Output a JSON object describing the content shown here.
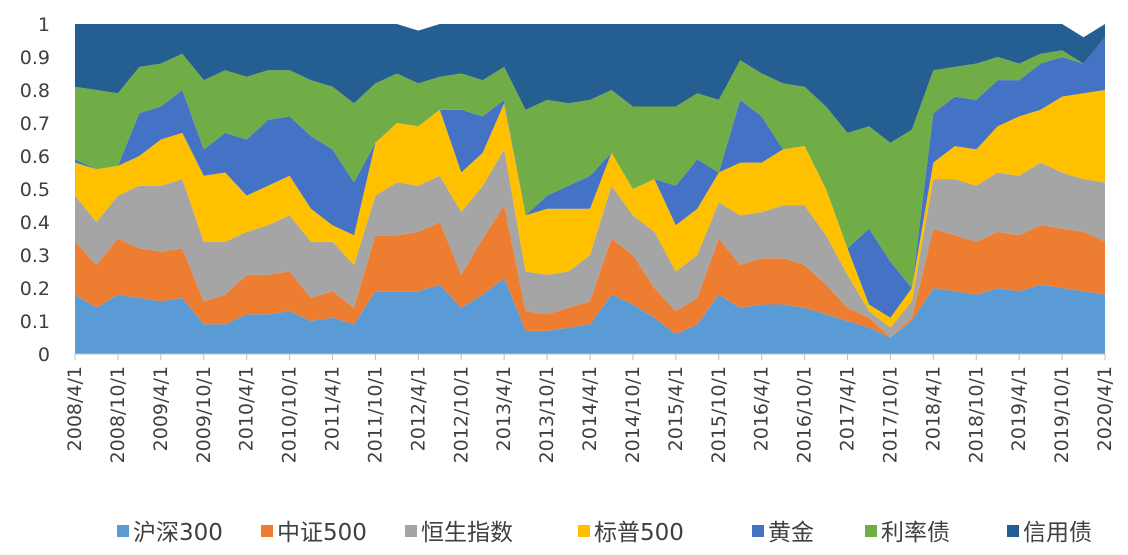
{
  "chart_data": {
    "type": "area",
    "stacked": true,
    "ylim": [
      0,
      1
    ],
    "y_ticks": [
      "0",
      "0.1",
      "0.2",
      "0.3",
      "0.4",
      "0.5",
      "0.6",
      "0.7",
      "0.8",
      "0.9",
      "1"
    ],
    "x_tick_labels": [
      "2008/4/1",
      "2008/10/1",
      "2009/4/1",
      "2009/10/1",
      "2010/4/1",
      "2010/10/1",
      "2011/4/1",
      "2011/10/1",
      "2012/4/1",
      "2012/10/1",
      "2013/4/1",
      "2013/10/1",
      "2014/4/1",
      "2014/10/1",
      "2015/4/1",
      "2015/10/1",
      "2016/4/1",
      "2016/10/1",
      "2017/4/1",
      "2017/10/1",
      "2018/4/1",
      "2018/10/1",
      "2019/4/1",
      "2019/10/1",
      "2020/4/1"
    ],
    "legend_position": "bottom",
    "grid": false,
    "x": [
      "2008/4/1",
      "2008/7/1",
      "2008/10/1",
      "2009/1/1",
      "2009/4/1",
      "2009/7/1",
      "2009/10/1",
      "2010/1/1",
      "2010/4/1",
      "2010/7/1",
      "2010/10/1",
      "2011/1/1",
      "2011/4/1",
      "2011/7/1",
      "2011/10/1",
      "2012/1/1",
      "2012/4/1",
      "2012/7/1",
      "2012/10/1",
      "2013/1/1",
      "2013/4/1",
      "2013/7/1",
      "2013/10/1",
      "2014/1/1",
      "2014/4/1",
      "2014/7/1",
      "2014/10/1",
      "2015/1/1",
      "2015/4/1",
      "2015/7/1",
      "2015/10/1",
      "2016/1/1",
      "2016/4/1",
      "2016/7/1",
      "2016/10/1",
      "2017/1/1",
      "2017/4/1",
      "2017/7/1",
      "2017/10/1",
      "2018/1/1",
      "2018/4/1",
      "2018/7/1",
      "2018/10/1",
      "2019/1/1",
      "2019/4/1",
      "2019/7/1",
      "2019/10/1",
      "2020/1/1",
      "2020/4/1"
    ],
    "series": [
      {
        "name": "沪深300",
        "color": "#5B9BD5",
        "values": [
          0.18,
          0.14,
          0.18,
          0.17,
          0.16,
          0.17,
          0.09,
          0.09,
          0.12,
          0.12,
          0.13,
          0.1,
          0.11,
          0.09,
          0.19,
          0.19,
          0.19,
          0.21,
          0.14,
          0.18,
          0.23,
          0.07,
          0.07,
          0.08,
          0.09,
          0.18,
          0.15,
          0.11,
          0.06,
          0.09,
          0.18,
          0.14,
          0.15,
          0.15,
          0.14,
          0.12,
          0.1,
          0.08,
          0.05,
          0.1,
          0.2,
          0.19,
          0.18,
          0.2,
          0.19,
          0.21,
          0.2,
          0.19,
          0.18
        ]
      },
      {
        "name": "中证500",
        "color": "#ED7D31",
        "values": [
          0.16,
          0.13,
          0.17,
          0.15,
          0.15,
          0.15,
          0.07,
          0.09,
          0.12,
          0.12,
          0.12,
          0.07,
          0.08,
          0.05,
          0.17,
          0.17,
          0.18,
          0.19,
          0.1,
          0.17,
          0.22,
          0.06,
          0.05,
          0.06,
          0.07,
          0.17,
          0.15,
          0.09,
          0.07,
          0.08,
          0.17,
          0.13,
          0.14,
          0.14,
          0.13,
          0.09,
          0.04,
          0.03,
          0.0,
          0.01,
          0.18,
          0.17,
          0.16,
          0.17,
          0.17,
          0.18,
          0.18,
          0.18,
          0.16
        ]
      },
      {
        "name": "恒生指数",
        "color": "#A5A5A5",
        "values": [
          0.14,
          0.13,
          0.13,
          0.19,
          0.2,
          0.21,
          0.18,
          0.16,
          0.13,
          0.15,
          0.17,
          0.17,
          0.15,
          0.13,
          0.12,
          0.16,
          0.14,
          0.14,
          0.19,
          0.16,
          0.17,
          0.12,
          0.12,
          0.11,
          0.14,
          0.16,
          0.12,
          0.17,
          0.12,
          0.13,
          0.11,
          0.15,
          0.14,
          0.16,
          0.18,
          0.15,
          0.1,
          0.02,
          0.03,
          0.05,
          0.15,
          0.17,
          0.17,
          0.18,
          0.18,
          0.19,
          0.17,
          0.16,
          0.18
        ]
      },
      {
        "name": "标普500",
        "color": "#FFC000",
        "values": [
          0.1,
          0.16,
          0.09,
          0.09,
          0.14,
          0.14,
          0.2,
          0.21,
          0.11,
          0.12,
          0.12,
          0.1,
          0.05,
          0.09,
          0.16,
          0.18,
          0.18,
          0.2,
          0.12,
          0.1,
          0.14,
          0.17,
          0.2,
          0.19,
          0.14,
          0.1,
          0.08,
          0.16,
          0.14,
          0.14,
          0.09,
          0.16,
          0.15,
          0.17,
          0.18,
          0.14,
          0.08,
          0.02,
          0.03,
          0.04,
          0.05,
          0.1,
          0.11,
          0.14,
          0.18,
          0.16,
          0.23,
          0.26,
          0.28
        ]
      },
      {
        "name": "黄金",
        "color": "#4472C4",
        "values": [
          0.01,
          0.0,
          0.0,
          0.13,
          0.1,
          0.13,
          0.08,
          0.12,
          0.17,
          0.2,
          0.18,
          0.22,
          0.23,
          0.16,
          0.0,
          0.0,
          0.0,
          0.0,
          0.19,
          0.11,
          0.01,
          0.0,
          0.04,
          0.07,
          0.1,
          0.0,
          0.0,
          0.0,
          0.12,
          0.15,
          0.0,
          0.19,
          0.14,
          0.0,
          0.0,
          0.0,
          0.0,
          0.23,
          0.17,
          0.0,
          0.15,
          0.15,
          0.15,
          0.14,
          0.11,
          0.14,
          0.12,
          0.09,
          0.16
        ]
      },
      {
        "name": "利率债",
        "color": "#70AD47",
        "values": [
          0.22,
          0.24,
          0.22,
          0.14,
          0.13,
          0.11,
          0.21,
          0.19,
          0.19,
          0.15,
          0.14,
          0.17,
          0.19,
          0.24,
          0.18,
          0.15,
          0.13,
          0.1,
          0.11,
          0.11,
          0.1,
          0.32,
          0.29,
          0.25,
          0.23,
          0.19,
          0.25,
          0.22,
          0.24,
          0.2,
          0.22,
          0.12,
          0.13,
          0.2,
          0.18,
          0.25,
          0.35,
          0.31,
          0.36,
          0.48,
          0.13,
          0.09,
          0.11,
          0.07,
          0.05,
          0.03,
          0.02,
          0.0,
          0.0
        ]
      },
      {
        "name": "信用债",
        "color": "#255E91",
        "values": [
          0.19,
          0.2,
          0.21,
          0.13,
          0.12,
          0.09,
          0.17,
          0.14,
          0.16,
          0.14,
          0.14,
          0.17,
          0.19,
          0.24,
          0.18,
          0.15,
          0.16,
          0.16,
          0.15,
          0.17,
          0.13,
          0.26,
          0.23,
          0.24,
          0.23,
          0.2,
          0.25,
          0.25,
          0.25,
          0.21,
          0.23,
          0.11,
          0.15,
          0.18,
          0.19,
          0.25,
          0.33,
          0.31,
          0.36,
          0.32,
          0.14,
          0.13,
          0.12,
          0.1,
          0.12,
          0.09,
          0.08,
          0.08,
          0.04
        ]
      }
    ]
  }
}
